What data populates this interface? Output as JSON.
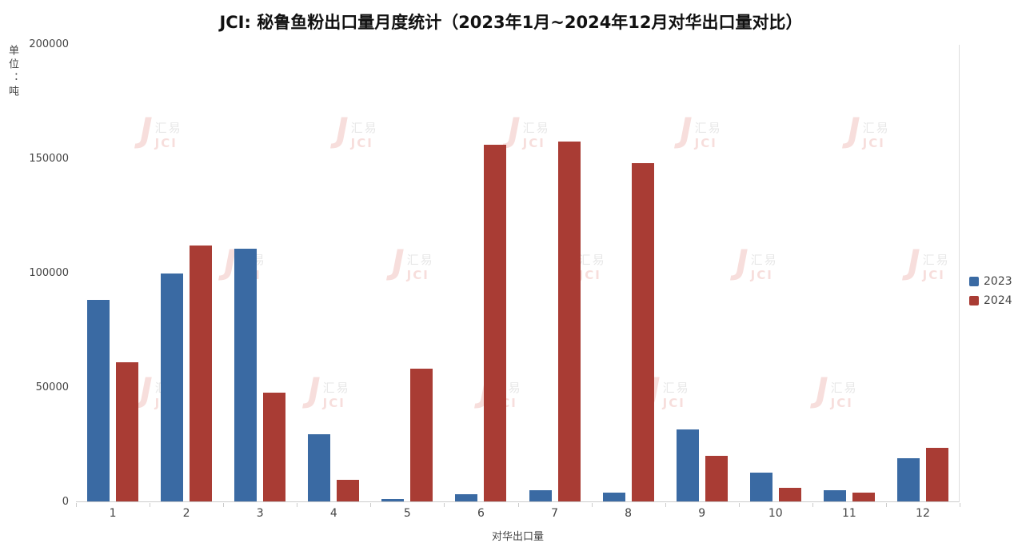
{
  "title": "JCI: 秘鲁鱼粉出口量月度统计（2023年1月~2024年12月对华出口量对比）",
  "watermark": {
    "brand_cn": "汇易",
    "brand_en": "JCI"
  },
  "legend": [
    {
      "label": "2023",
      "color": "#3a6aa3"
    },
    {
      "label": "2024",
      "color": "#a93c34"
    }
  ],
  "chart_data": {
    "type": "bar",
    "title": "JCI: 秘鲁鱼粉出口量月度统计（2023年1月~2024年12月对华出口量对比）",
    "xlabel": "对华出口量",
    "ylabel": "单位：吨",
    "categories": [
      "1",
      "2",
      "3",
      "4",
      "5",
      "6",
      "7",
      "8",
      "9",
      "10",
      "11",
      "12"
    ],
    "series": [
      {
        "name": "2023",
        "color": "#3a6aa3",
        "values": [
          88000,
          99500,
          110500,
          29500,
          1000,
          3000,
          5000,
          4000,
          31500,
          12500,
          5000,
          19000
        ]
      },
      {
        "name": "2024",
        "color": "#a93c34",
        "values": [
          61000,
          112000,
          47500,
          9500,
          58000,
          156000,
          157500,
          148000,
          20000,
          6000,
          4000,
          23500
        ]
      }
    ],
    "ylim": [
      0,
      200000
    ],
    "yticks": [
      0,
      50000,
      100000,
      150000,
      200000
    ],
    "grid": false,
    "legend_position": "right"
  }
}
